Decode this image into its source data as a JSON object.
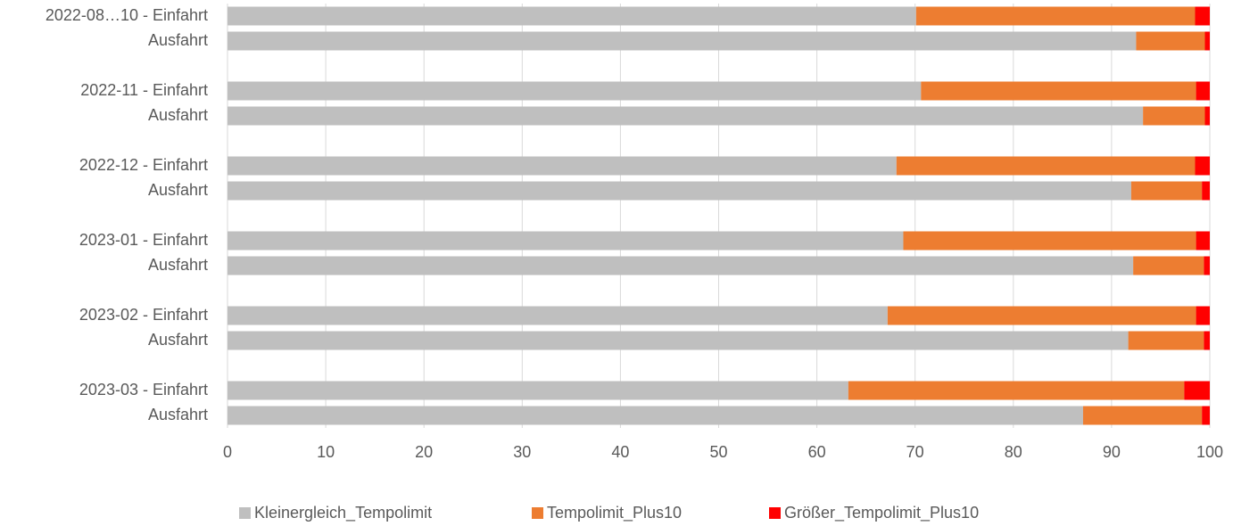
{
  "chart_data": {
    "type": "stacked_barh",
    "categories": [
      "2022-08…10 - Einfahrt",
      "Ausfahrt",
      null,
      "2022-11 - Einfahrt",
      "Ausfahrt",
      null,
      "2022-12 - Einfahrt",
      "Ausfahrt",
      null,
      "2023-01 - Einfahrt",
      "Ausfahrt",
      null,
      "2023-02 - Einfahrt",
      "Ausfahrt",
      null,
      "2023-03 - Einfahrt",
      "Ausfahrt"
    ],
    "series": [
      {
        "name": "Kleinergleich_Tempolimit",
        "color": "#bfbfbf",
        "values": [
          70.1,
          92.5,
          null,
          70.6,
          93.2,
          null,
          68.1,
          92.0,
          null,
          68.8,
          92.2,
          null,
          67.2,
          91.7,
          null,
          63.2,
          87.1
        ]
      },
      {
        "name": "Tempolimit_Plus10",
        "color": "#ed7d31",
        "values": [
          28.4,
          7.0,
          null,
          28.0,
          6.3,
          null,
          30.4,
          7.2,
          null,
          29.8,
          7.2,
          null,
          31.4,
          7.7,
          null,
          34.2,
          12.1
        ]
      },
      {
        "name": "Größer_Tempolimit_Plus10",
        "color": "#ff0000",
        "values": [
          1.5,
          0.5,
          null,
          1.4,
          0.5,
          null,
          1.5,
          0.8,
          null,
          1.4,
          0.6,
          null,
          1.4,
          0.6,
          null,
          2.6,
          0.8
        ]
      }
    ],
    "xlim": [
      0,
      100
    ],
    "xticks": [
      0,
      10,
      20,
      30,
      40,
      50,
      60,
      70,
      80,
      90,
      100
    ],
    "grid": true,
    "legend": "bottom"
  }
}
